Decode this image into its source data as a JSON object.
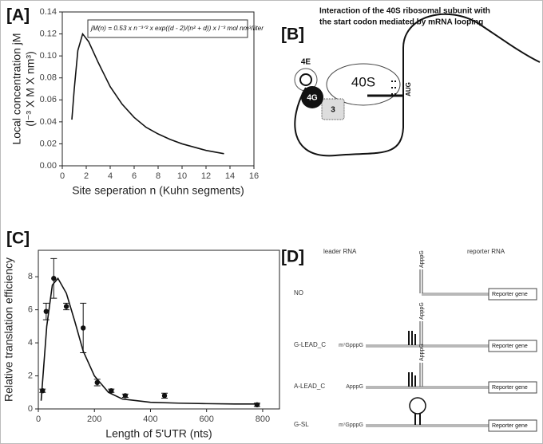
{
  "chart_data": [
    {
      "type": "line",
      "panel": "[A]",
      "x": [
        0.8,
        1.0,
        1.3,
        1.7,
        2.2,
        3,
        4,
        5,
        6,
        7,
        8,
        9,
        10,
        11,
        12,
        13.5
      ],
      "values": [
        0.042,
        0.07,
        0.105,
        0.12,
        0.113,
        0.094,
        0.072,
        0.056,
        0.044,
        0.035,
        0.029,
        0.024,
        0.02,
        0.017,
        0.014,
        0.011
      ],
      "color": "#111",
      "xlim": [
        0,
        16
      ],
      "ylim": [
        0,
        0.14
      ],
      "xticks": [
        0,
        2,
        4,
        6,
        8,
        10,
        12,
        14,
        16
      ],
      "yticks": [
        {
          "value": 0,
          "label": "0.00"
        },
        0.02,
        0.04,
        0.06,
        0.08,
        {
          "value": 0.1,
          "label": "0.10"
        },
        0.12,
        0.14
      ],
      "x_label": "Site seperation n (Kuhn segments)",
      "y_label": [
        "Local concentration jM",
        "(l⁻³ X M X nm³)"
      ],
      "annotation": "jM(n) = 0.53 x n⁻³ᐟ² x exp((d - 2)/(n² + d)) x l⁻³ mol nm³/liter"
    },
    {
      "type": "scatter",
      "panel": "[C]",
      "series": [
        {
          "type": "scatter",
          "color": "#111",
          "x": [
            15,
            28,
            55,
            100,
            160,
            210,
            260,
            310,
            450,
            780
          ],
          "values": [
            1.1,
            5.9,
            7.9,
            6.2,
            4.9,
            1.6,
            1.1,
            0.8,
            0.8,
            0.25
          ],
          "errors": [
            0.1,
            0.5,
            1.2,
            0.2,
            1.5,
            0.2,
            0.1,
            0.1,
            0.15,
            0.1
          ]
        },
        {
          "type": "line",
          "color": "#111",
          "x": [
            10,
            30,
            50,
            70,
            100,
            130,
            160,
            200,
            250,
            300,
            400,
            500,
            600,
            700,
            790
          ],
          "values": [
            0.5,
            5,
            7.5,
            7.9,
            7.0,
            5.3,
            3.5,
            2.0,
            1.0,
            0.6,
            0.4,
            0.35,
            0.32,
            0.3,
            0.3
          ]
        }
      ],
      "xlim": [
        0,
        860
      ],
      "ylim": [
        0,
        9.6
      ],
      "xticks": [
        0,
        200,
        400,
        600,
        800
      ],
      "yticks": [
        0,
        2,
        4,
        6,
        8
      ],
      "x_label": "Length of 5'UTR (nts)",
      "y_label": [
        "Relative translation efficiency"
      ]
    }
  ],
  "panel_b": {
    "label": "[B]",
    "title": [
      "Interaction of the 40S ribosomal subunit with",
      "the start codon mediated by mRNA looping"
    ],
    "eif4e": "4E",
    "eif4g": "4G",
    "ribosome": "40S",
    "eif3": "3",
    "codon": "AUG"
  },
  "panel_d": {
    "label": "[D]",
    "leader": "leader RNA",
    "reporter": "reporter RNA",
    "rows": [
      {
        "label": "NO",
        "stem": "ApppG",
        "gene": "Reporter gene"
      },
      {
        "label": "G-LEAD_C",
        "cap": "m⁷GpppG",
        "stem": "ApppG",
        "gene": "Reporter gene"
      },
      {
        "label": "A-LEAD_C",
        "cap": "ApppG",
        "stem": "ApppG",
        "gene": "Reporter gene"
      },
      {
        "label": "G-SL",
        "cap": "m⁷GpppG",
        "gene": "Reporter gene"
      }
    ]
  }
}
